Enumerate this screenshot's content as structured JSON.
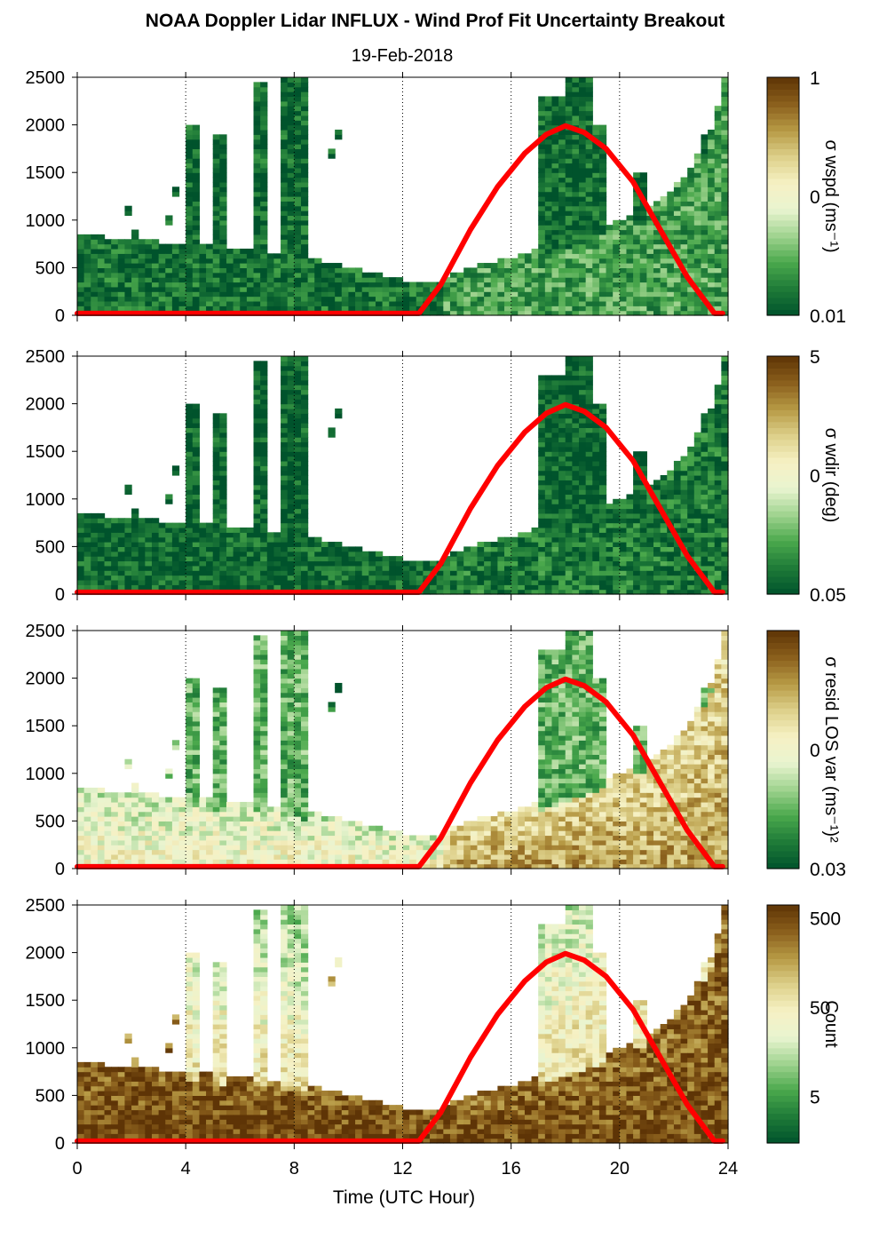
{
  "chart_data": {
    "type": "heatmap",
    "title": "NOAA Doppler Lidar INFLUX - Wind Prof Fit Uncertainty Breakout",
    "subtitle": "19-Feb-2018",
    "xlabel": "Time (UTC Hour)",
    "xlim": [
      0,
      24
    ],
    "xticks": [
      "0",
      "4",
      "8",
      "12",
      "16",
      "20",
      "24"
    ],
    "x_gridlines": [
      4,
      8,
      12,
      16,
      20,
      24
    ],
    "ylim": [
      0,
      2500
    ],
    "yticks": [
      "0",
      "500",
      "1000",
      "1500",
      "2000",
      "2500"
    ],
    "colormap": [
      "#00532c",
      "#1e7a38",
      "#4aa84c",
      "#9fd38f",
      "#e9f4d0",
      "#f6f1c4",
      "#ddd08a",
      "#b79a45",
      "#8a5f1c",
      "#5e3406"
    ],
    "overlay_line": {
      "color": "#ff0000",
      "x": [
        0,
        12.6,
        13.4,
        14.5,
        15.5,
        16.5,
        17.3,
        18.0,
        18.7,
        19.5,
        20.5,
        21.5,
        22.5,
        23.5,
        23.8
      ],
      "y": [
        20,
        20,
        320,
        900,
        1350,
        1700,
        1900,
        1990,
        1920,
        1750,
        1400,
        900,
        400,
        20,
        20
      ]
    },
    "panels": [
      {
        "colorbar_label": "σ wspd (ms⁻¹)",
        "colorbar_ticks": [
          "1",
          "0",
          "0.01"
        ],
        "color_scale": "log",
        "vlim": [
          0.01,
          1
        ],
        "low_layer_level": 0.08,
        "afternoon_level": 0.2,
        "column_level": 0.05
      },
      {
        "colorbar_label": "σ wdir (deg)",
        "colorbar_ticks": [
          "5",
          "0",
          "0.05"
        ],
        "color_scale": "log",
        "vlim": [
          0.05,
          5
        ],
        "low_layer_level": 0.05,
        "afternoon_level": 0.1,
        "column_level": 0.03
      },
      {
        "colorbar_label": "σ resid LOS var (ms⁻¹)²",
        "colorbar_ticks": [
          "0",
          "0.03"
        ],
        "color_scale": "log",
        "vlim": [
          0.03,
          3
        ],
        "low_layer_level": 0.4,
        "afternoon_level": 0.62,
        "column_level": 0.25
      },
      {
        "colorbar_label": "Count",
        "colorbar_ticks": [
          "500",
          "50",
          "5"
        ],
        "color_scale": "log",
        "vlim": [
          1.5,
          700
        ],
        "low_layer_level": 0.98,
        "afternoon_level": 0.95,
        "column_level": 0.7
      }
    ]
  }
}
